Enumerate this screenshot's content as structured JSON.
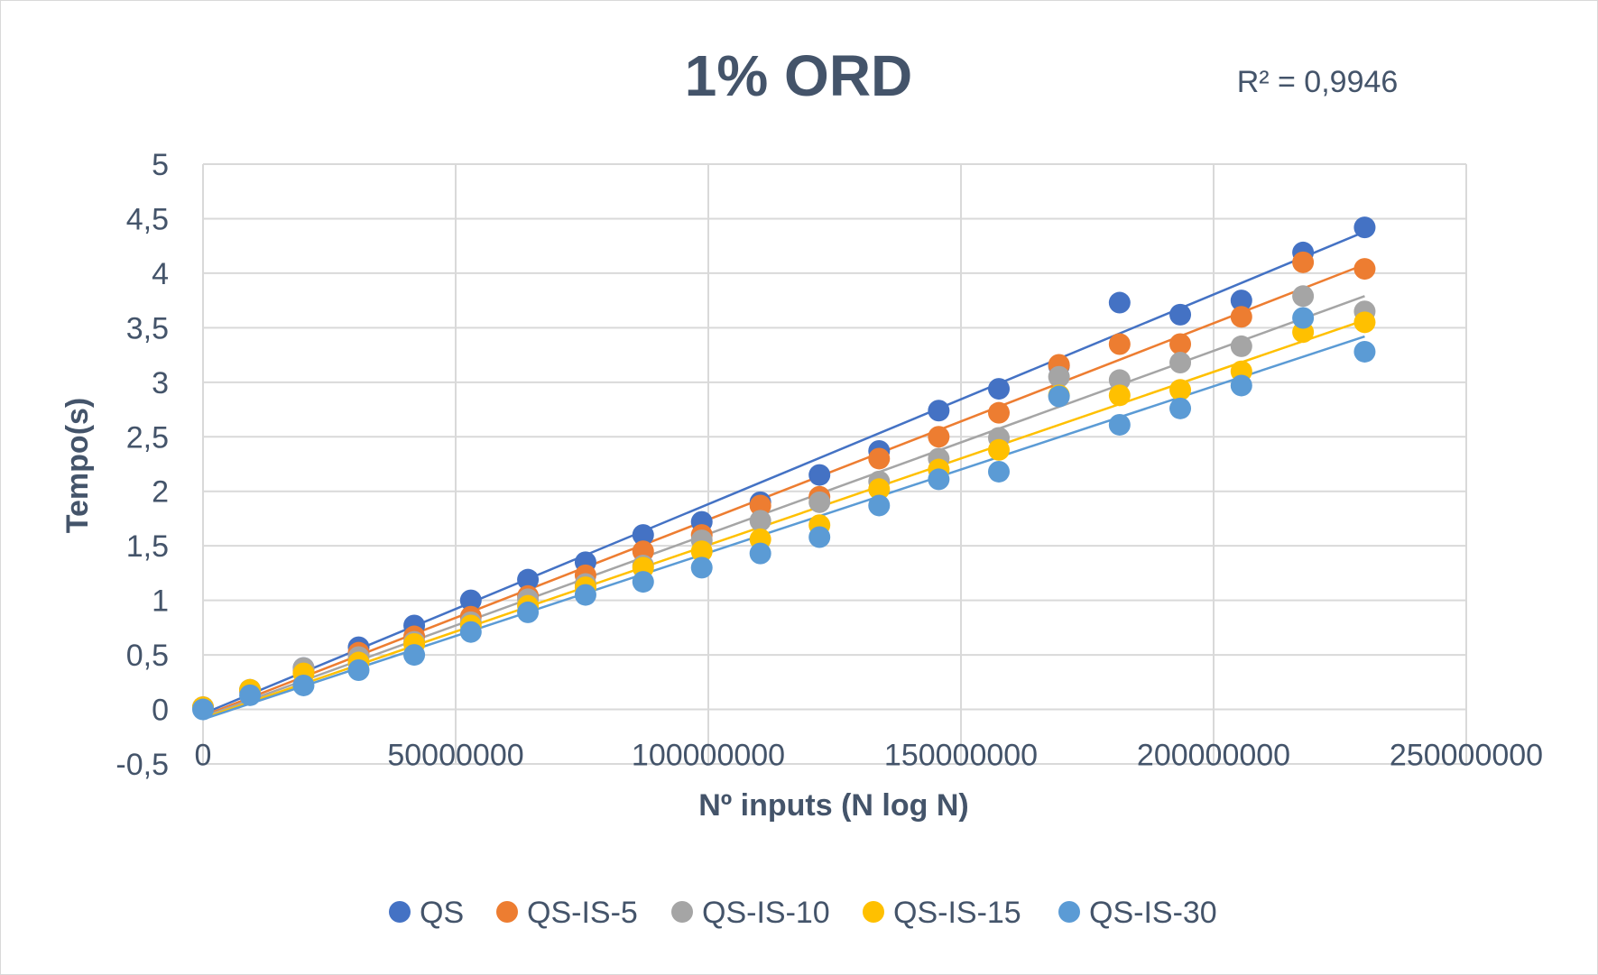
{
  "chart_data": {
    "type": "scatter",
    "title": "1% ORD",
    "annotation": "R² = 0,9946",
    "xlabel": "Nº inputs (N log N)",
    "ylabel": "Tempo(s)",
    "xlim": [
      0,
      250000000
    ],
    "ylim": [
      -0.5,
      5
    ],
    "x_ticks": [
      {
        "value": 0,
        "label": "0"
      },
      {
        "value": 50000000,
        "label": "50000000"
      },
      {
        "value": 100000000,
        "label": "100000000"
      },
      {
        "value": 150000000,
        "label": "150000000"
      },
      {
        "value": 200000000,
        "label": "200000000"
      },
      {
        "value": 250000000,
        "label": "250000000"
      }
    ],
    "y_ticks": [
      {
        "value": 5,
        "label": "5"
      },
      {
        "value": 4.5,
        "label": "4,5"
      },
      {
        "value": 4,
        "label": "4"
      },
      {
        "value": 3.5,
        "label": "3,5"
      },
      {
        "value": 3,
        "label": "3"
      },
      {
        "value": 2.5,
        "label": "2,5"
      },
      {
        "value": 2,
        "label": "2"
      },
      {
        "value": 1.5,
        "label": "1,5"
      },
      {
        "value": 1,
        "label": "1"
      },
      {
        "value": 0.5,
        "label": "0,5"
      },
      {
        "value": 0,
        "label": "0"
      },
      {
        "value": -0.5,
        "label": "-0,5"
      }
    ],
    "grid": true,
    "legend_position": "bottom",
    "x": [
      0,
      9300000,
      19900000,
      30800000,
      41800000,
      53000000,
      64300000,
      75700000,
      87100000,
      98700000,
      110300000,
      122000000,
      133800000,
      145600000,
      157500000,
      169400000,
      181400000,
      193400000,
      205500000,
      217700000,
      229900000
    ],
    "series": [
      {
        "name": "QS",
        "color": "#4472c4",
        "values": [
          0.02,
          0.18,
          0.38,
          0.57,
          0.77,
          1.0,
          1.19,
          1.35,
          1.6,
          1.72,
          1.9,
          2.15,
          2.37,
          2.74,
          2.94,
          3.15,
          3.73,
          3.62,
          3.75,
          4.19,
          4.42
        ],
        "trend": [
          -0.04,
          4.38
        ]
      },
      {
        "name": "QS-IS-5",
        "color": "#ed7d31",
        "values": [
          0.02,
          0.17,
          0.36,
          0.52,
          0.67,
          0.85,
          1.04,
          1.23,
          1.45,
          1.6,
          1.87,
          1.95,
          2.3,
          2.5,
          2.72,
          3.16,
          3.35,
          3.35,
          3.6,
          4.1,
          4.04
        ],
        "trend": [
          -0.06,
          4.08
        ]
      },
      {
        "name": "QS-IS-10",
        "color": "#a5a5a5",
        "values": [
          0.02,
          0.17,
          0.38,
          0.48,
          0.62,
          0.8,
          1.01,
          1.15,
          1.32,
          1.55,
          1.73,
          1.9,
          2.09,
          2.3,
          2.49,
          3.05,
          3.02,
          3.18,
          3.33,
          3.79,
          3.65
        ],
        "trend": [
          -0.07,
          3.79
        ]
      },
      {
        "name": "QS-IS-15",
        "color": "#ffc000",
        "values": [
          0.02,
          0.18,
          0.33,
          0.43,
          0.6,
          0.77,
          0.95,
          1.12,
          1.3,
          1.45,
          1.56,
          1.69,
          2.02,
          2.2,
          2.38,
          2.88,
          2.88,
          2.93,
          3.1,
          3.46,
          3.55
        ],
        "trend": [
          -0.08,
          3.57
        ]
      },
      {
        "name": "QS-IS-30",
        "color": "#5b9bd5",
        "values": [
          0.0,
          0.13,
          0.22,
          0.36,
          0.5,
          0.71,
          0.89,
          1.05,
          1.17,
          1.3,
          1.43,
          1.58,
          1.87,
          2.11,
          2.18,
          2.87,
          2.61,
          2.76,
          2.97,
          3.59,
          3.28
        ],
        "trend": [
          -0.09,
          3.42
        ]
      }
    ]
  }
}
